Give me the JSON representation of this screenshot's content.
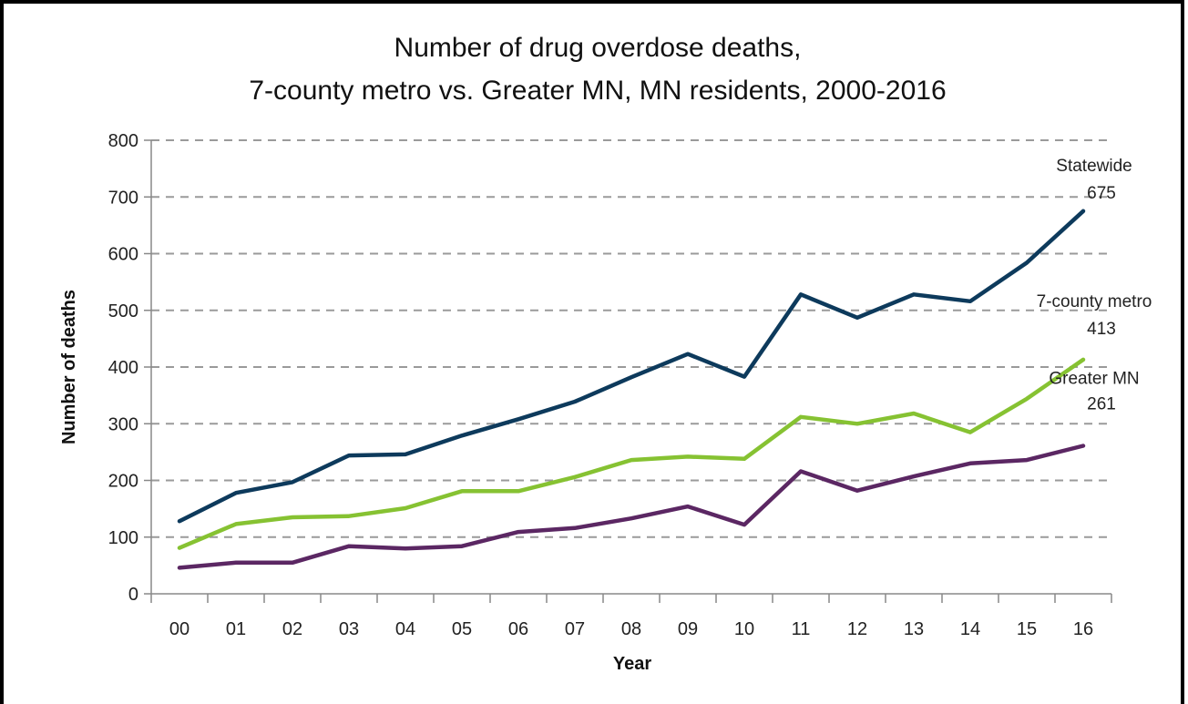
{
  "chart_data": {
    "type": "line",
    "title": "Number of drug overdose deaths,",
    "subtitle": "7-county metro vs. Greater MN,  MN residents, 2000-2016",
    "xlabel": "Year",
    "ylabel": "Number of deaths",
    "ylim": [
      0,
      800
    ],
    "yticks": [
      "0",
      "100",
      "200",
      "300",
      "400",
      "500",
      "600",
      "700",
      "800"
    ],
    "categories": [
      "00",
      "01",
      "02",
      "03",
      "04",
      "05",
      "06",
      "07",
      "08",
      "09",
      "10",
      "11",
      "12",
      "13",
      "14",
      "15",
      "16"
    ],
    "grid": "horizontal dashed",
    "legend": "none (direct labels at line ends)",
    "series": [
      {
        "name": "Statewide",
        "end_label": "675",
        "color": "#0d3a5c",
        "values": [
          128,
          178,
          197,
          244,
          246,
          279,
          308,
          339,
          382,
          423,
          383,
          528,
          487,
          528,
          516,
          584,
          675
        ]
      },
      {
        "name": "7-county metro",
        "end_label": "413",
        "color": "#86c232",
        "values": [
          81,
          123,
          135,
          137,
          151,
          181,
          181,
          206,
          236,
          242,
          238,
          312,
          300,
          318,
          285,
          344,
          413
        ]
      },
      {
        "name": "Greater MN",
        "end_label": "261",
        "color": "#5b2763",
        "values": [
          46,
          55,
          55,
          84,
          80,
          84,
          109,
          116,
          133,
          154,
          122,
          216,
          182,
          207,
          230,
          236,
          261
        ]
      }
    ]
  }
}
